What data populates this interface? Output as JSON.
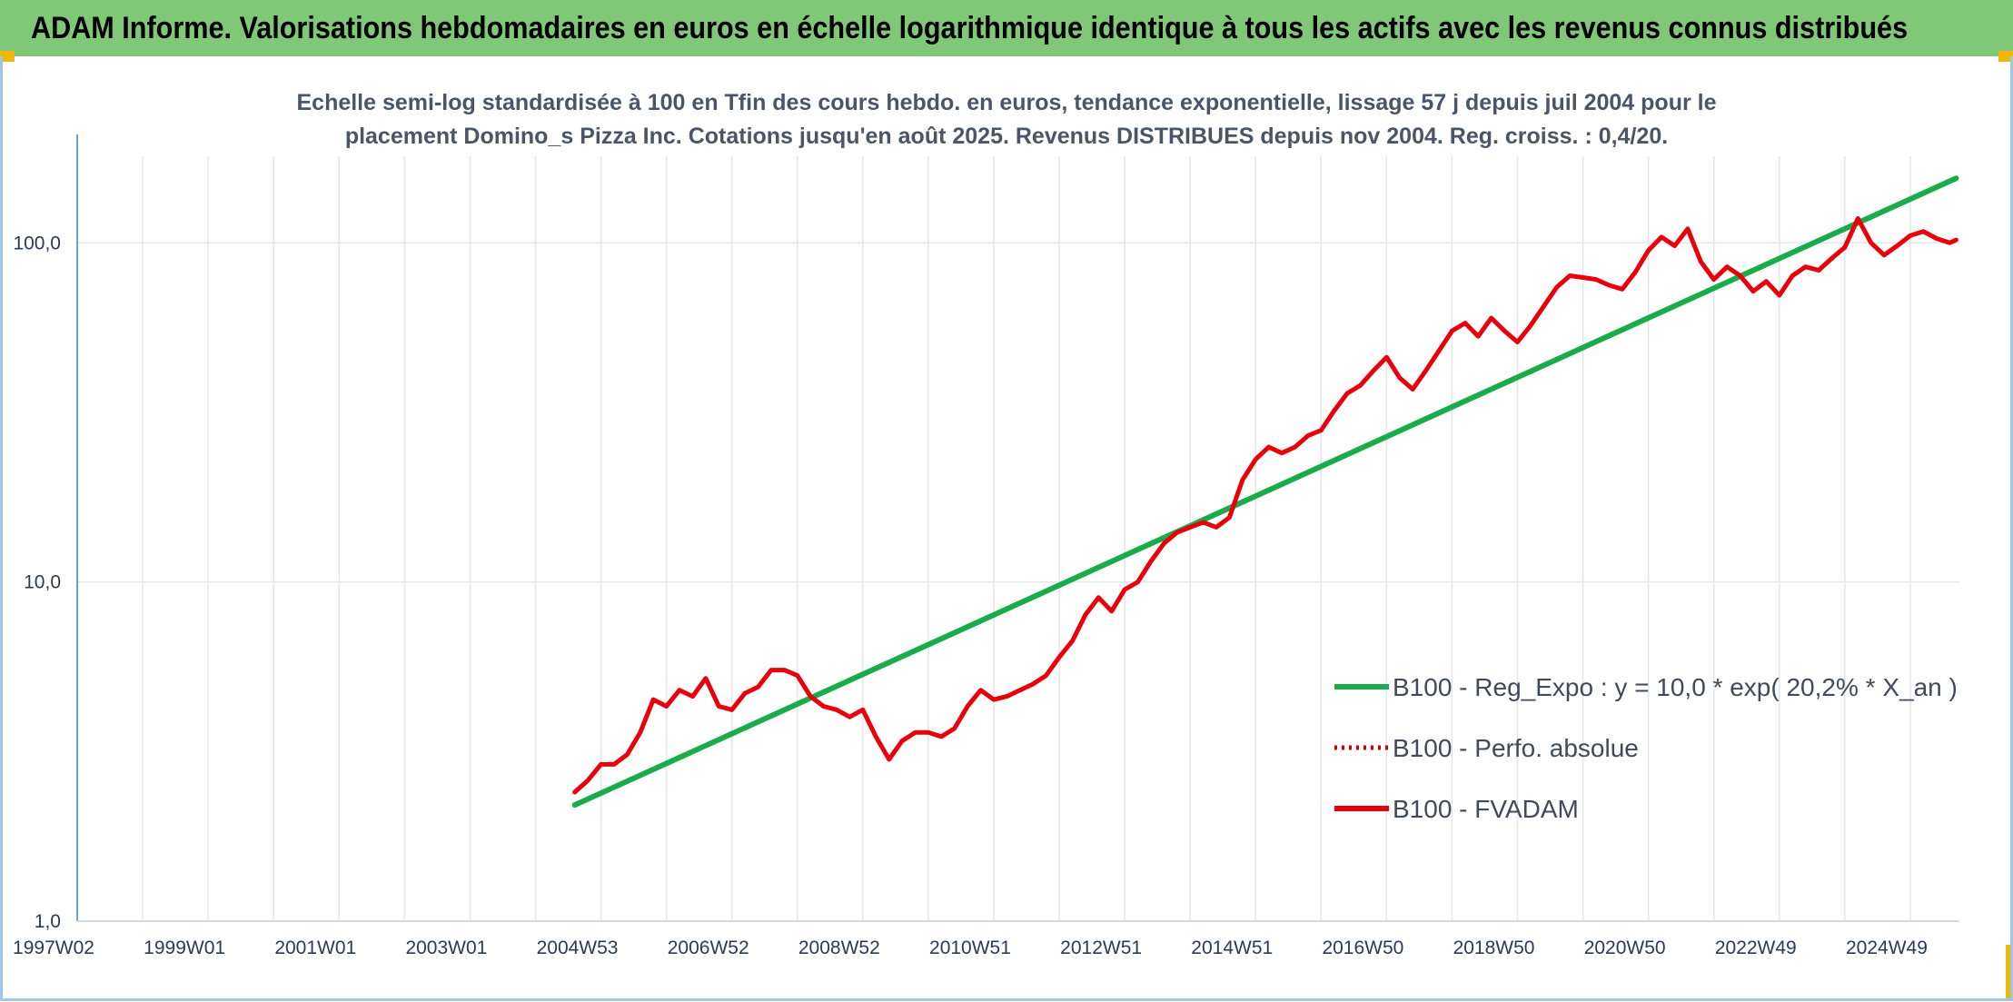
{
  "header": {
    "title": "ADAM Informe. Valorisations hebdomadaires en euros en échelle logarithmique identique à tous les actifs avec les revenus connus distribués"
  },
  "colors": {
    "banner": "#80c878",
    "corner_accent": "#f2b705",
    "trend": "#1aac4a",
    "fvadam": "#e8000b",
    "perfo": "#d00000",
    "grid": "#e3e6ea",
    "axis": "#6f9fd0"
  },
  "chart_data": {
    "type": "line",
    "subtitle_lines": [
      "Echelle semi-log standardisée à 100 en Tfin des cours hebdo. en euros, tendance exponentielle, lissage 57 j depuis juil 2004 pour le",
      "placement Domino_s Pizza Inc. Cotations jusqu'en août 2025. Revenus DISTRIBUES depuis nov 2004. Reg. croiss. : 0,4/20."
    ],
    "y_scale": "log",
    "ylim": [
      1,
      180
    ],
    "y_ticks": [
      {
        "value": 1,
        "label": "1,0"
      },
      {
        "value": 10,
        "label": "10,0"
      },
      {
        "value": 100,
        "label": "100,0"
      }
    ],
    "xlim": [
      1997.0,
      2025.75
    ],
    "x_ticks": [
      {
        "value": 1997.0,
        "label": "1997W02"
      },
      {
        "value": 1999.0,
        "label": "1999W01"
      },
      {
        "value": 2001.0,
        "label": "2001W01"
      },
      {
        "value": 2003.0,
        "label": "2003W01"
      },
      {
        "value": 2005.0,
        "label": "2004W53"
      },
      {
        "value": 2007.0,
        "label": "2006W52"
      },
      {
        "value": 2009.0,
        "label": "2008W52"
      },
      {
        "value": 2011.0,
        "label": "2010W51"
      },
      {
        "value": 2013.0,
        "label": "2012W51"
      },
      {
        "value": 2015.0,
        "label": "2014W51"
      },
      {
        "value": 2017.0,
        "label": "2016W50"
      },
      {
        "value": 2019.0,
        "label": "2018W50"
      },
      {
        "value": 2021.0,
        "label": "2020W50"
      },
      {
        "value": 2023.0,
        "label": "2022W49"
      },
      {
        "value": 2025.0,
        "label": "2024W49"
      }
    ],
    "grid": true,
    "legend_position": "bottom-right",
    "series": [
      {
        "name": "B100 - Reg_Expo : y = 10,0 * exp( 20,2% *  X_an )",
        "style": "solid-green",
        "x": [
          2004.6,
          2025.7
        ],
        "y": [
          2.2,
          155
        ]
      },
      {
        "name": "B100 - Perfo. absolue",
        "style": "dotted-red",
        "x": [],
        "y": []
      },
      {
        "name": "B100 - FVADAM",
        "style": "solid-red",
        "x": [
          2004.6,
          2004.8,
          2005.0,
          2005.2,
          2005.4,
          2005.6,
          2005.8,
          2006.0,
          2006.2,
          2006.4,
          2006.6,
          2006.8,
          2007.0,
          2007.2,
          2007.4,
          2007.6,
          2007.8,
          2008.0,
          2008.2,
          2008.4,
          2008.6,
          2008.8,
          2009.0,
          2009.2,
          2009.4,
          2009.6,
          2009.8,
          2010.0,
          2010.2,
          2010.4,
          2010.6,
          2010.8,
          2011.0,
          2011.2,
          2011.4,
          2011.6,
          2011.8,
          2012.0,
          2012.2,
          2012.4,
          2012.6,
          2012.8,
          2013.0,
          2013.2,
          2013.4,
          2013.6,
          2013.8,
          2014.0,
          2014.2,
          2014.4,
          2014.6,
          2014.8,
          2015.0,
          2015.2,
          2015.4,
          2015.6,
          2015.8,
          2016.0,
          2016.2,
          2016.4,
          2016.6,
          2016.8,
          2017.0,
          2017.2,
          2017.4,
          2017.6,
          2017.8,
          2018.0,
          2018.2,
          2018.4,
          2018.6,
          2018.8,
          2019.0,
          2019.2,
          2019.4,
          2019.6,
          2019.8,
          2020.0,
          2020.2,
          2020.4,
          2020.6,
          2020.8,
          2021.0,
          2021.2,
          2021.4,
          2021.6,
          2021.8,
          2022.0,
          2022.2,
          2022.4,
          2022.6,
          2022.8,
          2023.0,
          2023.2,
          2023.4,
          2023.6,
          2023.8,
          2024.0,
          2024.2,
          2024.4,
          2024.6,
          2024.8,
          2025.0,
          2025.2,
          2025.4,
          2025.6,
          2025.7
        ],
        "y": [
          2.4,
          2.6,
          2.9,
          2.9,
          3.1,
          3.6,
          4.5,
          4.3,
          4.8,
          4.6,
          5.2,
          4.3,
          4.2,
          4.7,
          4.9,
          5.5,
          5.5,
          5.3,
          4.6,
          4.3,
          4.2,
          4.0,
          4.2,
          3.5,
          3.0,
          3.4,
          3.6,
          3.6,
          3.5,
          3.7,
          4.3,
          4.8,
          4.5,
          4.6,
          4.8,
          5.0,
          5.3,
          6.0,
          6.7,
          8.0,
          9.0,
          8.2,
          9.5,
          10.0,
          11.5,
          13.0,
          14.0,
          14.5,
          15.0,
          14.5,
          15.5,
          20.0,
          23.0,
          25.0,
          24.0,
          25.0,
          27.0,
          28.0,
          32.0,
          36.0,
          38.0,
          42.0,
          46.0,
          40.0,
          37.0,
          42.0,
          48.0,
          55.0,
          58.0,
          53.0,
          60.0,
          55.0,
          51.0,
          57.0,
          65.0,
          74.0,
          80.0,
          79.0,
          78.0,
          75.0,
          73.0,
          82.0,
          95.0,
          104.0,
          98.0,
          110.0,
          88.0,
          78.0,
          85.0,
          80.0,
          72.0,
          77.0,
          70.0,
          80.0,
          85.0,
          83.0,
          90.0,
          97.0,
          118.0,
          100.0,
          92.0,
          98.0,
          105.0,
          108.0,
          103.0,
          100.0,
          102.0
        ]
      }
    ]
  }
}
